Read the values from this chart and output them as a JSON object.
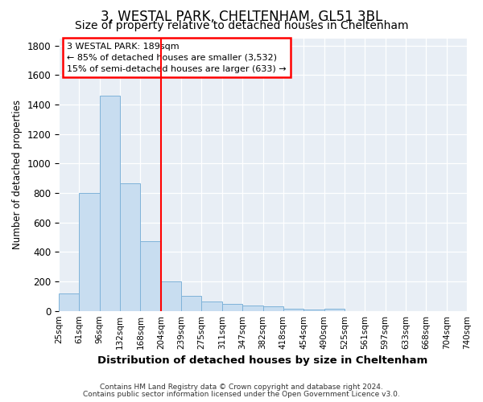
{
  "title1": "3, WESTAL PARK, CHELTENHAM, GL51 3BL",
  "title2": "Size of property relative to detached houses in Cheltenham",
  "xlabel": "Distribution of detached houses by size in Cheltenham",
  "ylabel": "Number of detached properties",
  "bar_values": [
    120,
    800,
    1460,
    865,
    475,
    200,
    100,
    65,
    45,
    35,
    30,
    15,
    10,
    15,
    0,
    0,
    0,
    0,
    0,
    0
  ],
  "x_labels": [
    "25sqm",
    "61sqm",
    "96sqm",
    "132sqm",
    "168sqm",
    "204sqm",
    "239sqm",
    "275sqm",
    "311sqm",
    "347sqm",
    "382sqm",
    "418sqm",
    "454sqm",
    "490sqm",
    "525sqm",
    "561sqm",
    "597sqm",
    "633sqm",
    "668sqm",
    "704sqm",
    "740sqm"
  ],
  "bar_color": "#c8ddf0",
  "bar_edge_color": "#7fb3d9",
  "ylim": [
    0,
    1850
  ],
  "yticks": [
    0,
    200,
    400,
    600,
    800,
    1000,
    1200,
    1400,
    1600,
    1800
  ],
  "red_line_x": 5.0,
  "annotation_line1": "3 WESTAL PARK: 189sqm",
  "annotation_line2": "← 85% of detached houses are smaller (3,532)",
  "annotation_line3": "15% of semi-detached houses are larger (633) →",
  "footer1": "Contains HM Land Registry data © Crown copyright and database right 2024.",
  "footer2": "Contains public sector information licensed under the Open Government Licence v3.0.",
  "background_color": "#ffffff",
  "plot_bg_color": "#e8eef5",
  "title1_fontsize": 12,
  "title2_fontsize": 10
}
